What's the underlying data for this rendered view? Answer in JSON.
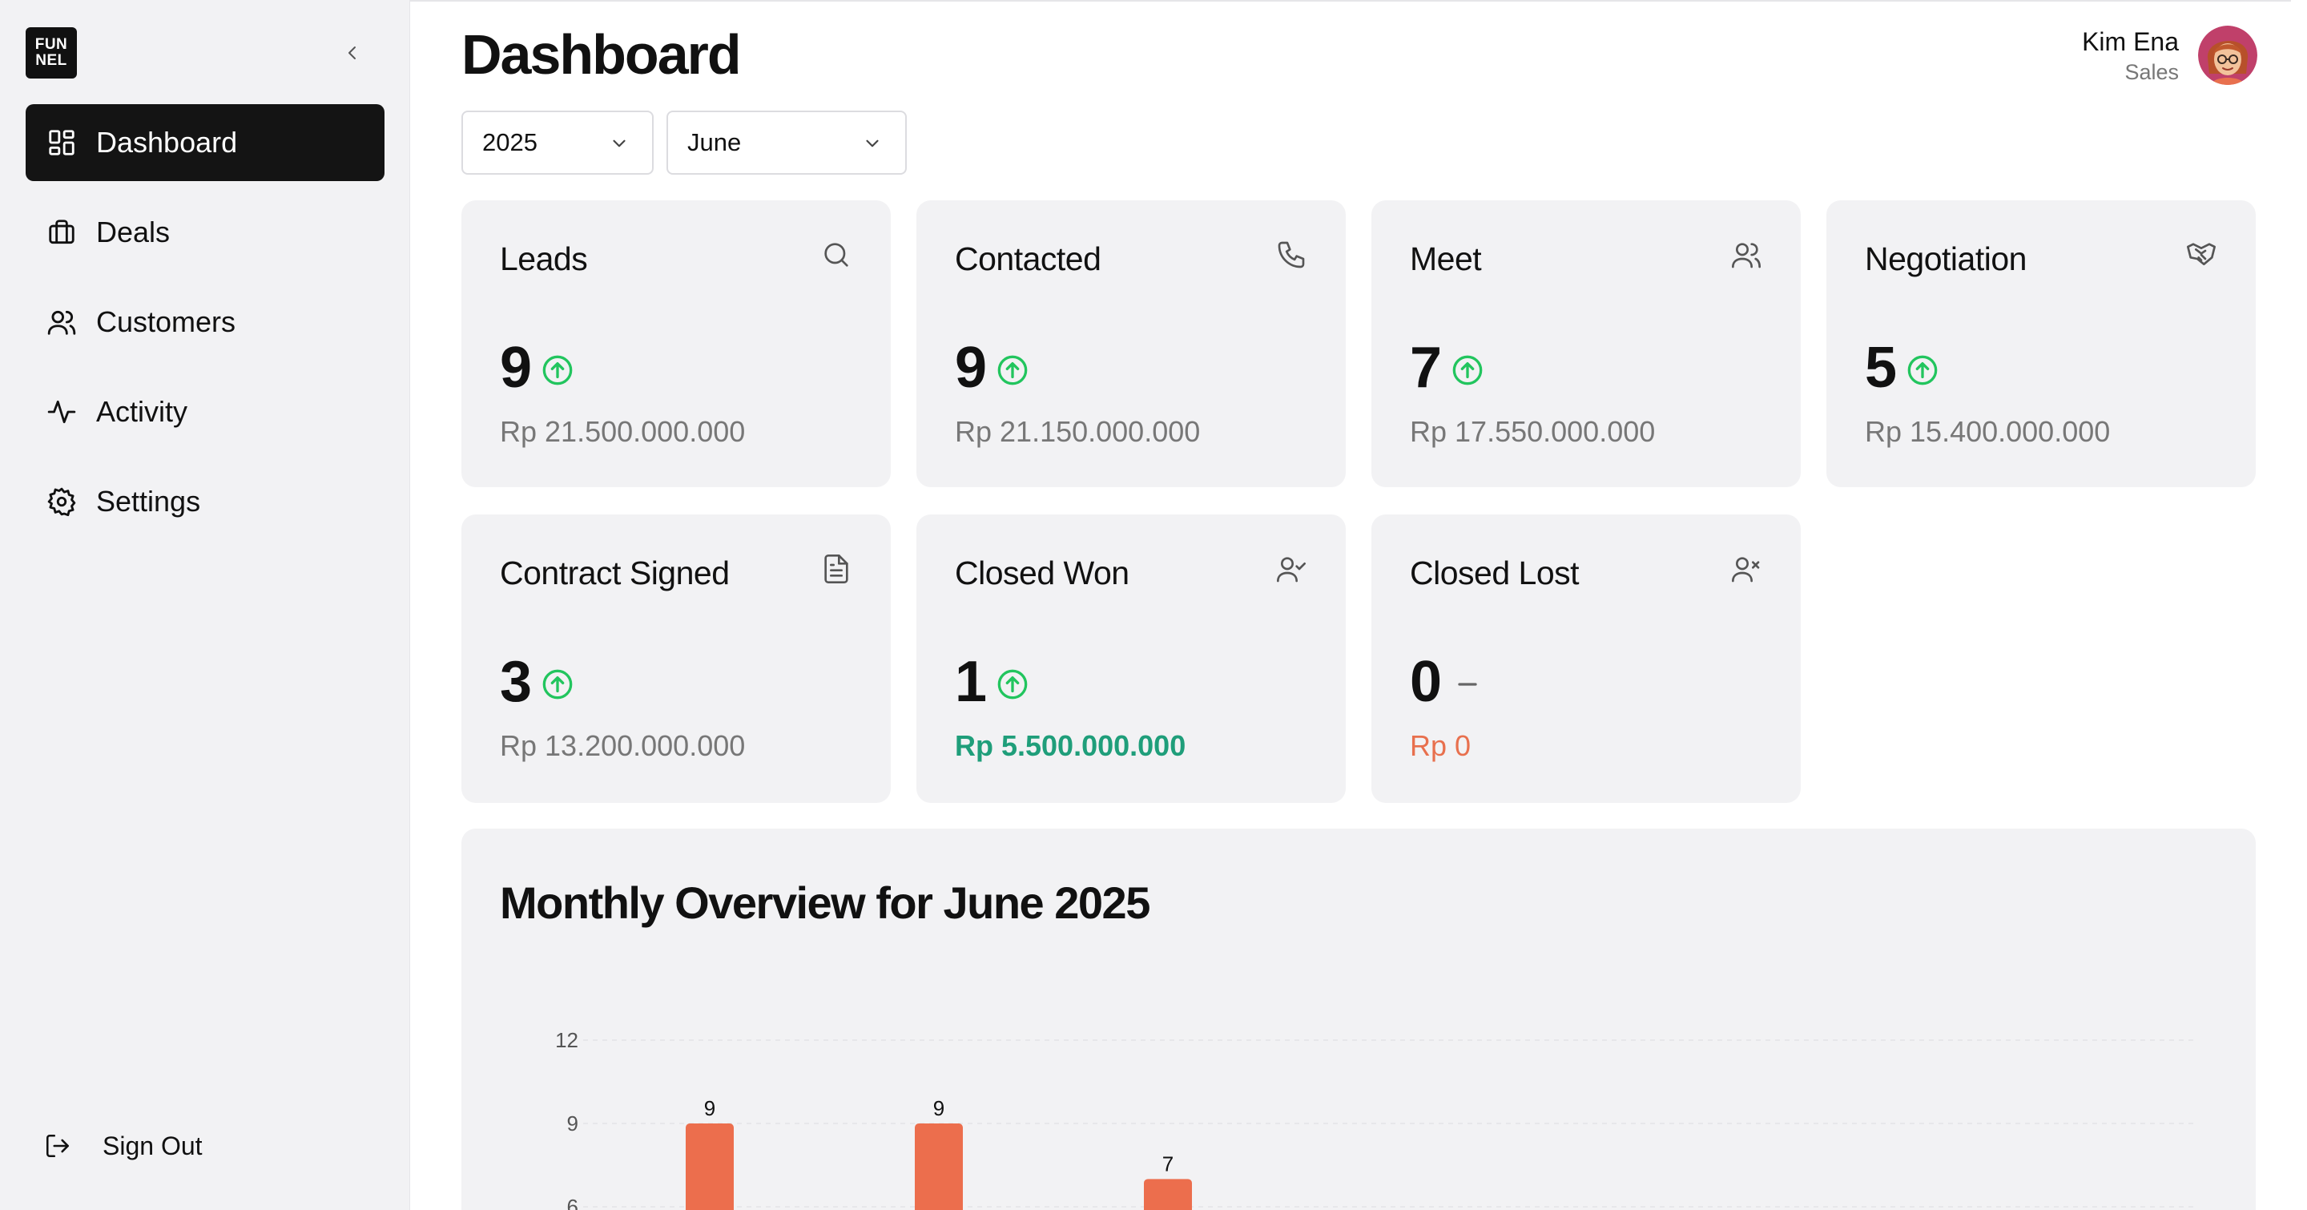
{
  "app": {
    "logo_line1": "FUN",
    "logo_line2": "NEL"
  },
  "sidebar": {
    "items": [
      {
        "label": "Dashboard",
        "icon": "dashboard-icon",
        "active": true
      },
      {
        "label": "Deals",
        "icon": "briefcase-icon",
        "active": false
      },
      {
        "label": "Customers",
        "icon": "users-icon",
        "active": false
      },
      {
        "label": "Activity",
        "icon": "activity-icon",
        "active": false
      },
      {
        "label": "Settings",
        "icon": "gear-icon",
        "active": false
      }
    ],
    "signout_label": "Sign Out"
  },
  "header": {
    "title": "Dashboard",
    "user_name": "Kim Ena",
    "user_role": "Sales"
  },
  "filters": {
    "year": "2025",
    "month": "June"
  },
  "cards": [
    {
      "title": "Leads",
      "icon": "search-icon",
      "value": "9",
      "trend": "up",
      "amount": "Rp 21.500.000.000",
      "amount_color": "#777777"
    },
    {
      "title": "Contacted",
      "icon": "phone-icon",
      "value": "9",
      "trend": "up",
      "amount": "Rp 21.150.000.000",
      "amount_color": "#777777"
    },
    {
      "title": "Meet",
      "icon": "users-icon",
      "value": "7",
      "trend": "up",
      "amount": "Rp 17.550.000.000",
      "amount_color": "#777777"
    },
    {
      "title": "Negotiation",
      "icon": "handshake-icon",
      "value": "5",
      "trend": "up",
      "amount": "Rp 15.400.000.000",
      "amount_color": "#777777"
    },
    {
      "title": "Contract Signed",
      "icon": "document-icon",
      "value": "3",
      "trend": "up",
      "amount": "Rp 13.200.000.000",
      "amount_color": "#777777"
    },
    {
      "title": "Closed Won",
      "icon": "user-check-icon",
      "value": "1",
      "trend": "up",
      "amount": "Rp 5.500.000.000",
      "amount_color": "#1f9e7a"
    },
    {
      "title": "Closed Lost",
      "icon": "user-x-icon",
      "value": "0",
      "trend": "flat",
      "amount": "Rp 0",
      "amount_color": "#e8704e"
    }
  ],
  "colors": {
    "trend_up": "#22c55e",
    "bar": "#ec6e4d",
    "won": "#1f9e7a",
    "lost": "#e8704e"
  },
  "overview": {
    "title": "Monthly Overview for June 2025"
  },
  "chart_data": {
    "type": "bar",
    "title": "Monthly Overview for June 2025",
    "y_ticks": [
      12,
      9,
      6
    ],
    "ylim": [
      0,
      12
    ],
    "grid": true,
    "visible_values": [
      9,
      9,
      7
    ]
  }
}
